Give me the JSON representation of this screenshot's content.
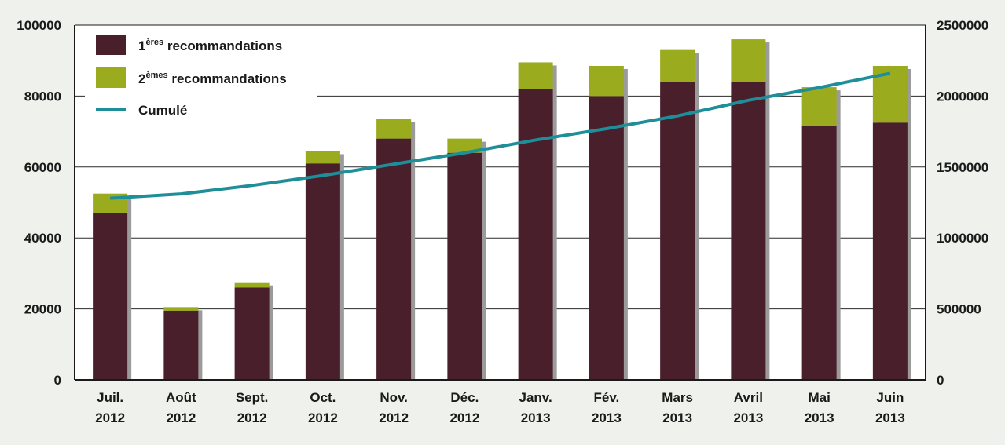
{
  "chart_data": {
    "type": "bar",
    "stacked": true,
    "categories": [
      [
        "Juil.",
        "2012"
      ],
      [
        "Août",
        "2012"
      ],
      [
        "Sept.",
        "2012"
      ],
      [
        "Oct.",
        "2012"
      ],
      [
        "Nov.",
        "2012"
      ],
      [
        "Déc.",
        "2012"
      ],
      [
        "Janv.",
        "2013"
      ],
      [
        "Fév.",
        "2013"
      ],
      [
        "Mars",
        "2013"
      ],
      [
        "Avril",
        "2013"
      ],
      [
        "Mai",
        "2013"
      ],
      [
        "Juin",
        "2013"
      ]
    ],
    "series": [
      {
        "name": "1ères recommandations",
        "legend_base": "1",
        "legend_sup": "ères",
        "legend_rest": " recommandations",
        "color": "#4a1f2c",
        "axis": "left",
        "values": [
          47000,
          19500,
          26000,
          61000,
          68000,
          64000,
          82000,
          80000,
          84000,
          84000,
          71500,
          72500
        ]
      },
      {
        "name": "2èmes recommandations",
        "legend_base": "2",
        "legend_sup": "èmes",
        "legend_rest": " recommandations",
        "color": "#9aab1e",
        "axis": "left",
        "values": [
          5500,
          1000,
          1500,
          3500,
          5500,
          4000,
          7500,
          8500,
          9000,
          12000,
          11000,
          16000
        ]
      },
      {
        "name": "Cumulé",
        "type": "line",
        "color": "#1e8e99",
        "axis": "right",
        "values": [
          1280000,
          1310000,
          1370000,
          1440000,
          1520000,
          1600000,
          1690000,
          1770000,
          1860000,
          1970000,
          2060000,
          2160000
        ]
      }
    ],
    "yleft": {
      "min": 0,
      "max": 100000,
      "ticks": [
        "0",
        "20000",
        "40000",
        "60000",
        "80000",
        "100000"
      ]
    },
    "yright": {
      "min": 0,
      "max": 2500000,
      "ticks": [
        "0",
        "500000",
        "1000000",
        "1500000",
        "2000000",
        "2500000"
      ]
    },
    "grid": true,
    "legend": "top-left"
  }
}
